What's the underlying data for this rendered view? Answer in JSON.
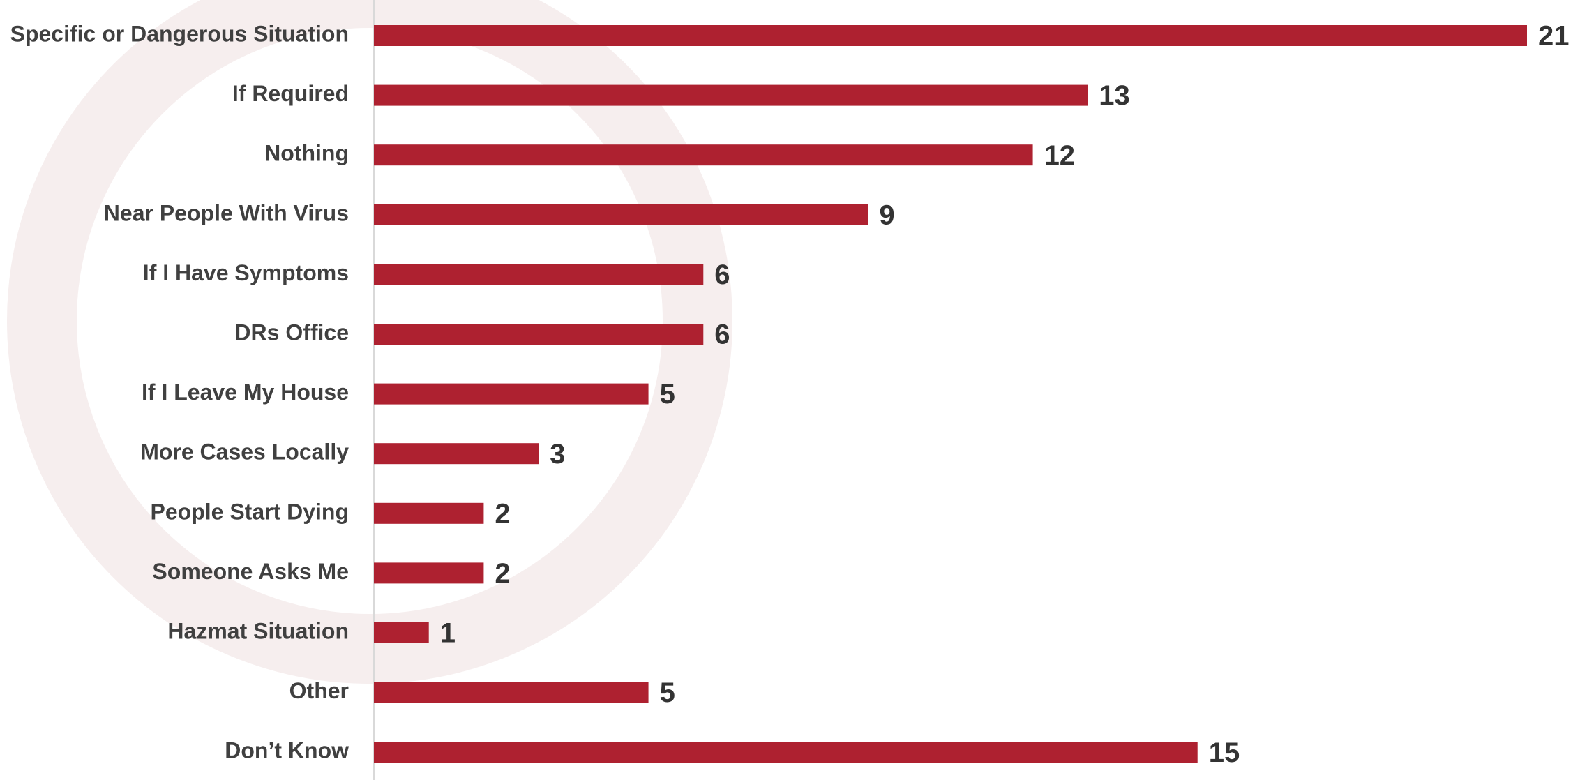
{
  "chart_data": {
    "type": "bar",
    "orientation": "horizontal",
    "categories": [
      "Specific or Dangerous Situation",
      "If Required",
      "Nothing",
      "Near People With Virus",
      "If I Have Symptoms",
      "DRs Office",
      "If I Leave My House",
      "More Cases Locally",
      "People Start Dying",
      "Someone Asks Me",
      "Hazmat Situation",
      "Other",
      "Don’t Know"
    ],
    "values": [
      21,
      13,
      12,
      9,
      6,
      6,
      5,
      3,
      2,
      2,
      1,
      5,
      15
    ],
    "color": "#ae2130"
  }
}
